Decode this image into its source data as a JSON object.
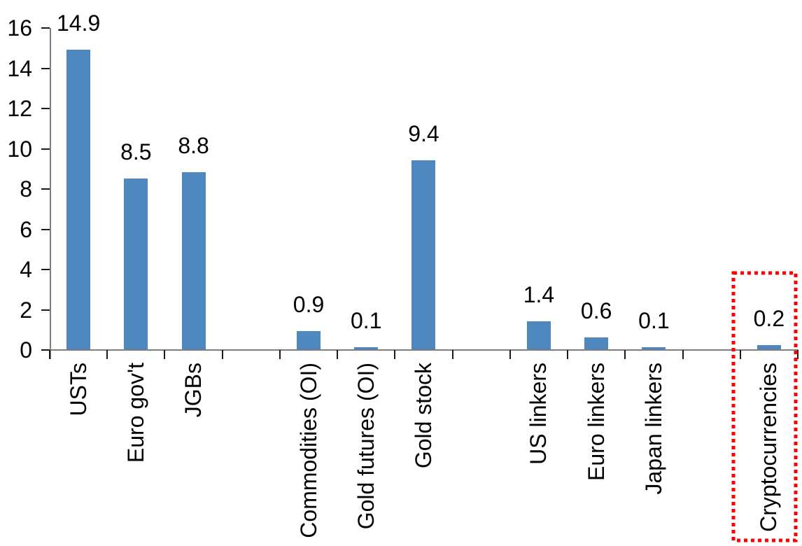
{
  "chart_data": {
    "type": "bar",
    "title": "",
    "xlabel": "",
    "ylabel": "",
    "categories": [
      "USTs",
      "Euro gov't",
      "JGBs",
      "Commodities (OI)",
      "Gold futures (OI)",
      "Gold stock",
      "US linkers",
      "Euro linkers",
      "Japan linkers",
      "Cryptocurrencies"
    ],
    "values": [
      14.9,
      8.5,
      8.8,
      0.9,
      0.1,
      9.4,
      1.4,
      0.6,
      0.1,
      0.2
    ],
    "value_labels": [
      "14.9",
      "8.5",
      "8.8",
      "0.9",
      "0.1",
      "9.4",
      "1.4",
      "0.6",
      "0.1",
      "0.2"
    ],
    "slots": [
      0,
      1,
      2,
      4,
      5,
      6,
      8,
      9,
      10,
      12
    ],
    "total_slots": 13,
    "group_gaps_after": [
      "JGBs",
      "Gold stock",
      "Japan linkers"
    ],
    "yticks": [
      0,
      2,
      4,
      6,
      8,
      10,
      12,
      14,
      16
    ],
    "ylim": [
      0,
      16
    ],
    "grid": false,
    "legend": false,
    "colors": {
      "bar": "#4E88BE",
      "axis": "#7F7F7F",
      "tick": "#1A1A1A",
      "text": "#000000",
      "highlight": "#FF0000"
    },
    "highlight": {
      "category": "Cryptocurrencies",
      "style": "red-dotted-box"
    }
  }
}
